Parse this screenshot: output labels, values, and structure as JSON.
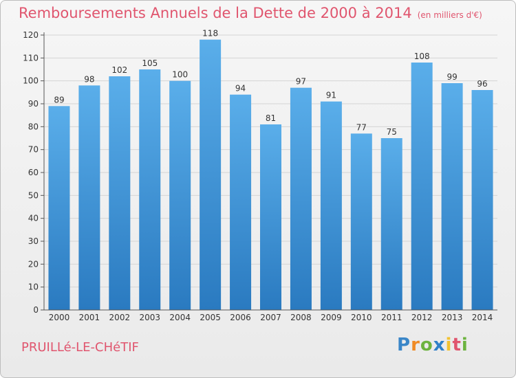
{
  "title": "Remboursements Annuels de la Dette de 2000 à 2014",
  "subtitle": "(en milliers d'€)",
  "place": "PRUILLé-LE-CHéTIF",
  "logo": {
    "letters": [
      "P",
      "r",
      "o",
      "x",
      "i",
      "t",
      "i"
    ],
    "colors": [
      "#3a86c8",
      "#f08a24",
      "#6cb33f",
      "#2f80c8",
      "#f2c230",
      "#e0556e",
      "#6cb33f"
    ]
  },
  "colors": {
    "bar": "#4a9ee0",
    "title": "#e0556e"
  },
  "chart_data": {
    "type": "bar",
    "categories": [
      "2000",
      "2001",
      "2002",
      "2003",
      "2004",
      "2005",
      "2006",
      "2007",
      "2008",
      "2009",
      "2010",
      "2011",
      "2012",
      "2013",
      "2014"
    ],
    "values": [
      89,
      98,
      102,
      105,
      100,
      118,
      94,
      81,
      97,
      91,
      77,
      75,
      108,
      99,
      96
    ],
    "ylim": [
      0,
      120
    ],
    "yticks": [
      0,
      10,
      20,
      30,
      40,
      50,
      60,
      70,
      80,
      90,
      100,
      110,
      120
    ],
    "grid": true
  }
}
